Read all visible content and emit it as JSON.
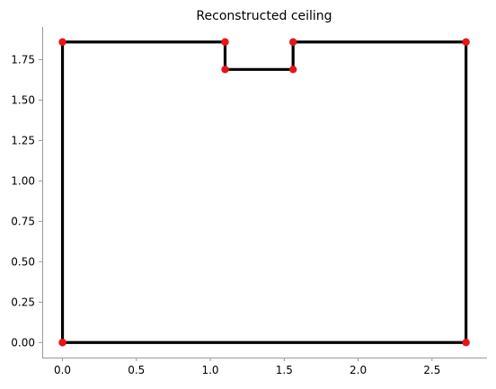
{
  "chart_data": {
    "type": "line",
    "title": "Reconstructed ceiling",
    "xlabel": "",
    "ylabel": "",
    "xlim": [
      -0.137,
      2.872
    ],
    "ylim": [
      -0.093,
      1.953
    ],
    "x_ticks": [
      0.0,
      0.5,
      1.0,
      1.5,
      2.0,
      2.5
    ],
    "x_tick_labels": [
      "0.0",
      "0.5",
      "1.0",
      "1.5",
      "2.0",
      "2.5"
    ],
    "y_ticks": [
      0.0,
      0.25,
      0.5,
      0.75,
      1.0,
      1.25,
      1.5,
      1.75
    ],
    "y_tick_labels": [
      "0.00",
      "0.25",
      "0.50",
      "0.75",
      "1.00",
      "1.25",
      "1.50",
      "1.75"
    ],
    "grid": false,
    "series": [
      {
        "color": "#000000",
        "marker_color": "#e8141a",
        "points": [
          {
            "x": 0.0,
            "y": 0.0
          },
          {
            "x": 0.0,
            "y": 1.86
          },
          {
            "x": 1.1,
            "y": 1.86
          },
          {
            "x": 1.1,
            "y": 1.69
          },
          {
            "x": 1.56,
            "y": 1.69
          },
          {
            "x": 1.56,
            "y": 1.86
          },
          {
            "x": 2.73,
            "y": 1.86
          },
          {
            "x": 2.73,
            "y": 0.0
          },
          {
            "x": 0.0,
            "y": 0.0
          }
        ]
      }
    ]
  }
}
